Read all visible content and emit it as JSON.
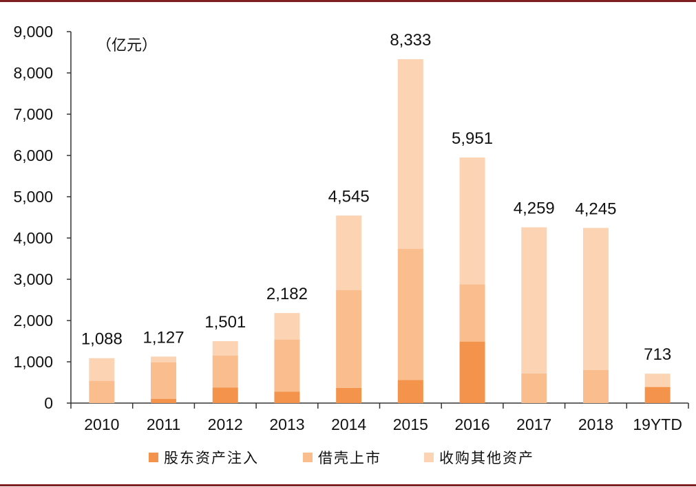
{
  "chart_data": {
    "type": "bar",
    "stacked": true,
    "unit_label": "（亿元）",
    "categories": [
      "2010",
      "2011",
      "2012",
      "2013",
      "2014",
      "2015",
      "2016",
      "2017",
      "2018",
      "19YTD"
    ],
    "series": [
      {
        "name": "股东资产注入",
        "color": "#f4944c",
        "values": [
          0,
          100,
          380,
          280,
          370,
          560,
          1490,
          0,
          0,
          390
        ]
      },
      {
        "name": "借壳上市",
        "color": "#f9bd8e",
        "values": [
          540,
          890,
          770,
          1260,
          2370,
          3180,
          1390,
          720,
          800,
          0
        ]
      },
      {
        "name": "收购其他资产",
        "color": "#fcd4b4",
        "values": [
          548,
          137,
          351,
          642,
          1805,
          4593,
          3071,
          3539,
          3445,
          323
        ]
      }
    ],
    "totals": [
      1088,
      1127,
      1501,
      2182,
      4545,
      8333,
      5951,
      4259,
      4245,
      713
    ],
    "total_labels": [
      "1,088",
      "1,127",
      "1,501",
      "2,182",
      "4,545",
      "8,333",
      "5,951",
      "4,259",
      "4,245",
      "713"
    ],
    "ylim": [
      0,
      9000
    ],
    "yticks": [
      0,
      1000,
      2000,
      3000,
      4000,
      5000,
      6000,
      7000,
      8000,
      9000
    ],
    "ytick_labels": [
      "0",
      "1,000",
      "2,000",
      "3,000",
      "4,000",
      "5,000",
      "6,000",
      "7,000",
      "8,000",
      "9,000"
    ],
    "grid": false,
    "legend_position": "bottom"
  }
}
